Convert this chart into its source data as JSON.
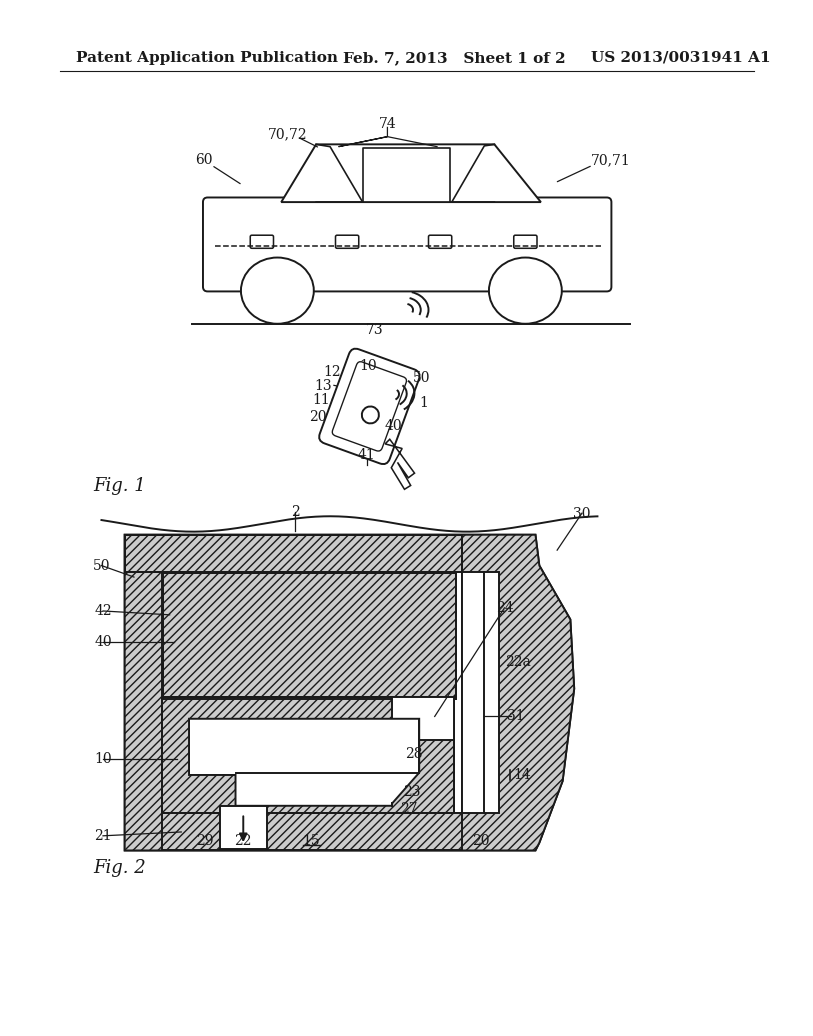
{
  "bg_color": "#ffffff",
  "header_left": "Patent Application Publication",
  "header_center": "Feb. 7, 2013   Sheet 1 of 2",
  "header_right": "US 2013/0031941 A1",
  "fig1_label": "Fig. 1",
  "fig2_label": "Fig. 2",
  "line_color": "#1a1a1a",
  "font_size_header": 11,
  "font_size_ref": 10,
  "font_size_fig": 13
}
